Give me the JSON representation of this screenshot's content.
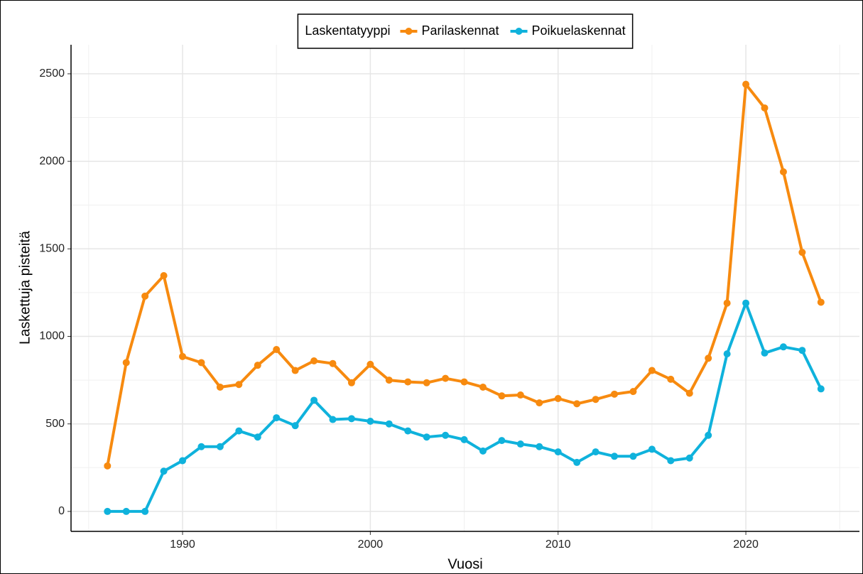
{
  "chart_data": {
    "type": "line",
    "x_label": "Vuosi",
    "y_label": "Laskettuja pisteitä",
    "legend_title": "Laskentatyyppi",
    "legend_position": "top",
    "x": [
      1986,
      1987,
      1988,
      1989,
      1990,
      1991,
      1992,
      1993,
      1994,
      1995,
      1996,
      1997,
      1998,
      1999,
      2000,
      2001,
      2002,
      2003,
      2004,
      2005,
      2006,
      2007,
      2008,
      2009,
      2010,
      2011,
      2012,
      2013,
      2014,
      2015,
      2016,
      2017,
      2018,
      2019,
      2020,
      2021,
      2022,
      2023,
      2024
    ],
    "series": [
      {
        "name": "Parilaskennat",
        "color": "#f78a0f",
        "values": [
          260,
          850,
          1230,
          1347,
          885,
          850,
          710,
          725,
          835,
          925,
          805,
          860,
          845,
          735,
          840,
          750,
          740,
          735,
          760,
          740,
          710,
          660,
          665,
          620,
          645,
          615,
          640,
          670,
          685,
          805,
          755,
          675,
          875,
          1190,
          2440,
          2305,
          1940,
          1480,
          1195
        ]
      },
      {
        "name": "Poikuelaskennat",
        "color": "#0fb2dc",
        "values": [
          0,
          0,
          0,
          230,
          290,
          370,
          370,
          460,
          425,
          535,
          490,
          635,
          525,
          530,
          515,
          500,
          460,
          425,
          435,
          410,
          345,
          405,
          385,
          370,
          340,
          280,
          340,
          315,
          315,
          355,
          290,
          305,
          435,
          900,
          1190,
          905,
          940,
          920,
          700
        ]
      }
    ],
    "xlim": [
      1984.06,
      2026.05
    ],
    "ylim": [
      -114,
      2666
    ],
    "xticks": [
      1990,
      2000,
      2010,
      2020
    ],
    "yticks": [
      0,
      500,
      1000,
      1500,
      2000,
      2500
    ],
    "grid": true
  }
}
